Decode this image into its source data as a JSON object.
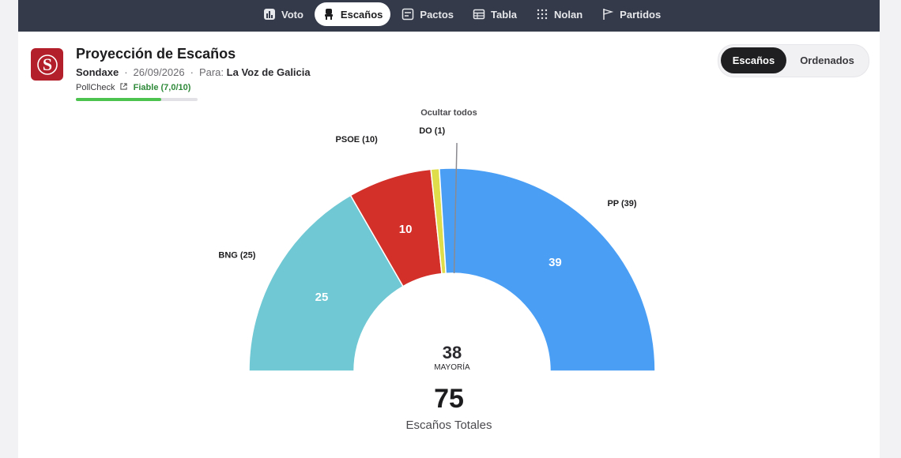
{
  "nav": {
    "items": [
      {
        "label": "Voto",
        "icon": "bar-chart-icon"
      },
      {
        "label": "Escaños",
        "icon": "chair-icon"
      },
      {
        "label": "Pactos",
        "icon": "pacts-icon"
      },
      {
        "label": "Tabla",
        "icon": "table-icon"
      },
      {
        "label": "Nolan",
        "icon": "grid-dots-icon"
      },
      {
        "label": "Partidos",
        "icon": "flag-icon"
      }
    ],
    "active": "Escaños"
  },
  "header": {
    "title": "Proyección de Escaños",
    "pollster": "Sondaxe",
    "date": "26/09/2026",
    "for_label": "Para:",
    "client": "La Voz de Galicia",
    "pollcheck_label": "PollCheck",
    "rating": "Fiable (7,0/10)",
    "rating_score": 0.7
  },
  "view_toggle": {
    "active": "Escaños",
    "inactive": "Ordenados"
  },
  "hide_all_label": "Ocultar todos",
  "colors": {
    "topbar": "#343a4a",
    "logo": "#b3202c",
    "accent_green": "#4cc24f"
  },
  "chart_data": {
    "type": "pie",
    "subtype": "parliament-semicircle",
    "series": [
      {
        "name": "BNG",
        "value": 25,
        "color": "#6fc8d3",
        "label": "BNG (25)"
      },
      {
        "name": "PSOE",
        "value": 10,
        "color": "#d3302a",
        "label": "PSOE (10)"
      },
      {
        "name": "DO",
        "value": 1,
        "color": "#e0dd4a",
        "label": "DO (1)"
      },
      {
        "name": "PP",
        "value": 39,
        "color": "#4a9ff5",
        "label": "PP (39)"
      }
    ],
    "majority": 38,
    "majority_label": "MAYORÍA",
    "total": 75,
    "total_label": "Escaños Totales"
  }
}
